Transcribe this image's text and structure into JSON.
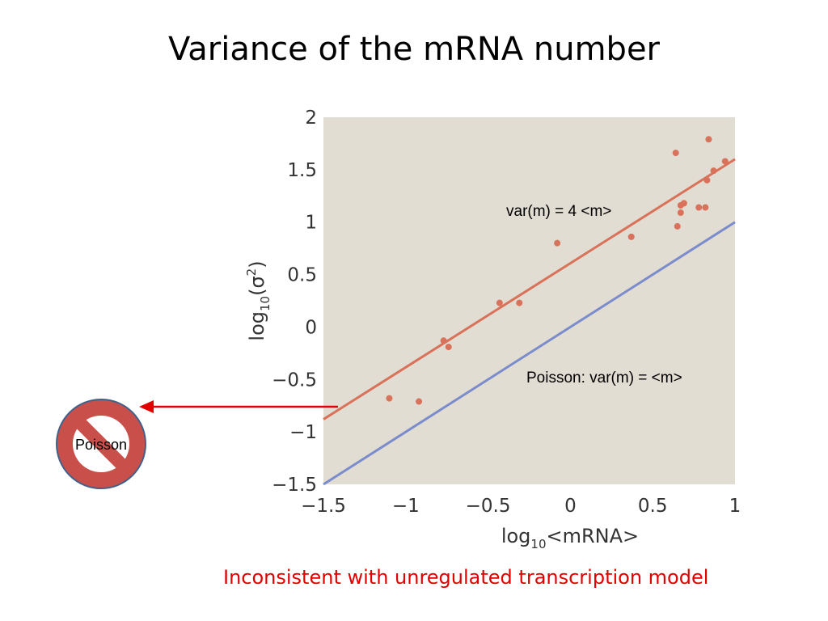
{
  "slide": {
    "title": "Variance of the mRNA number",
    "footnote": "Inconsistent with unregulated transcription model",
    "no_poisson_label": "Poisson"
  },
  "colors": {
    "plot_background": "#e2ddd2",
    "fit_line": "#d9725a",
    "points": "#d9725a",
    "poisson_line": "#7b8ccc",
    "arrow": "#e00000",
    "no_sign_fill": "#c9504a",
    "no_sign_stroke": "#41608a",
    "footnote": "#e00000"
  },
  "chart_data": {
    "type": "scatter",
    "xlabel": {
      "pre": "log",
      "sub": "10",
      "post": "<mRNA>"
    },
    "ylabel": {
      "pre": "log",
      "sub": "10",
      "post": "(σ",
      "sup": "2",
      "close": ")"
    },
    "xlim": [
      -1.5,
      1
    ],
    "ylim": [
      -1.5,
      2
    ],
    "x_ticks": [
      -1.5,
      -1,
      -0.5,
      0,
      0.5,
      1
    ],
    "x_tick_labels": [
      "−1.5",
      "−1",
      "−0.5",
      "0",
      "0.5",
      "1"
    ],
    "y_ticks": [
      -1.5,
      -1,
      -0.5,
      0,
      0.5,
      1,
      1.5,
      2
    ],
    "y_tick_labels": [
      "−1.5",
      "−1",
      "−0.5",
      "0",
      "0.5",
      "1",
      "1.5",
      "2"
    ],
    "grid": false,
    "series": [
      {
        "kind": "points",
        "points": [
          [
            -1.1,
            -0.68
          ],
          [
            -0.92,
            -0.71
          ],
          [
            -0.77,
            -0.13
          ],
          [
            -0.74,
            -0.19
          ],
          [
            -0.43,
            0.23
          ],
          [
            -0.31,
            0.23
          ],
          [
            -0.08,
            0.8
          ],
          [
            0.37,
            0.86
          ],
          [
            0.64,
            1.66
          ],
          [
            0.65,
            0.96
          ],
          [
            0.67,
            1.09
          ],
          [
            0.67,
            1.16
          ],
          [
            0.69,
            1.18
          ],
          [
            0.78,
            1.14
          ],
          [
            0.82,
            1.14
          ],
          [
            0.83,
            1.4
          ],
          [
            0.84,
            1.79
          ],
          [
            0.87,
            1.49
          ],
          [
            0.94,
            1.58
          ]
        ]
      },
      {
        "name": "var(m) = 4 <m>",
        "kind": "line",
        "x": [
          -1.5,
          1
        ],
        "y": [
          -0.88,
          1.6
        ]
      },
      {
        "name": "Poisson: var(m) = <m>",
        "kind": "line",
        "x": [
          -1.5,
          1
        ],
        "y": [
          -1.5,
          1
        ]
      }
    ]
  }
}
